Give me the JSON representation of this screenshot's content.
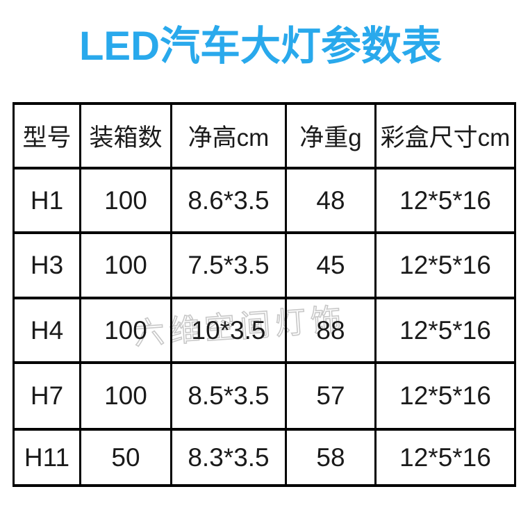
{
  "title": "LED汽车大灯参数表",
  "watermark": "六维空间灯饰",
  "colors": {
    "title_blue": "#29a9ec",
    "text": "#1a1a1a",
    "border": "#000000",
    "watermark_gray": "#c8c8c8",
    "background": "#ffffff"
  },
  "chart_data": {
    "type": "table",
    "title": "LED汽车大灯参数表",
    "columns": [
      "型号",
      "装箱数",
      "净高cm",
      "净重g",
      "彩盒尺寸cm"
    ],
    "rows": [
      [
        "H1",
        "100",
        "8.6*3.5",
        "48",
        "12*5*16"
      ],
      [
        "H3",
        "100",
        "7.5*3.5",
        "45",
        "12*5*16"
      ],
      [
        "H4",
        "100",
        "10*3.5",
        "88",
        "12*5*16"
      ],
      [
        "H7",
        "100",
        "8.5*3.5",
        "57",
        "12*5*16"
      ],
      [
        "H11",
        "50",
        "8.3*3.5",
        "58",
        "12*5*16"
      ]
    ]
  }
}
